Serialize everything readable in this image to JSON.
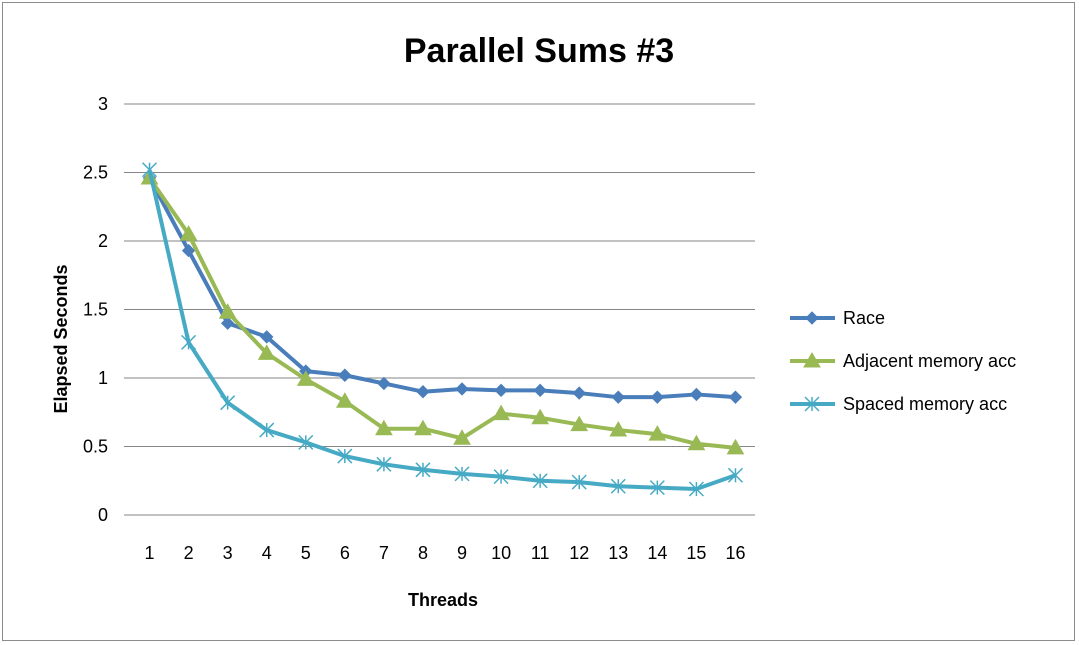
{
  "chart_data": {
    "type": "line",
    "title": "Parallel Sums #3",
    "xlabel": "Threads",
    "ylabel": "Elapsed Seconds",
    "categories": [
      "1",
      "2",
      "3",
      "4",
      "5",
      "6",
      "7",
      "8",
      "9",
      "10",
      "11",
      "12",
      "13",
      "14",
      "15",
      "16"
    ],
    "ylim": [
      0,
      3
    ],
    "yticks": [
      "0",
      "0.5",
      "1",
      "1.5",
      "2",
      "2.5",
      "3"
    ],
    "grid": true,
    "legend_position": "right",
    "series": [
      {
        "name": "Race",
        "color": "#4a7ebb",
        "marker": "diamond",
        "values": [
          2.46,
          1.93,
          1.4,
          1.3,
          1.05,
          1.02,
          0.96,
          0.9,
          0.92,
          0.91,
          0.91,
          0.89,
          0.86,
          0.86,
          0.88,
          0.86
        ]
      },
      {
        "name": "Adjacent memory acc",
        "color": "#98b954",
        "marker": "triangle",
        "values": [
          2.46,
          2.05,
          1.48,
          1.18,
          0.99,
          0.83,
          0.63,
          0.63,
          0.56,
          0.74,
          0.71,
          0.66,
          0.62,
          0.59,
          0.52,
          0.49
        ]
      },
      {
        "name": "Spaced memory acc",
        "color": "#46aac5",
        "marker": "star",
        "values": [
          2.52,
          1.26,
          0.82,
          0.62,
          0.53,
          0.43,
          0.37,
          0.33,
          0.3,
          0.28,
          0.25,
          0.24,
          0.21,
          0.2,
          0.19,
          0.29
        ]
      }
    ]
  }
}
